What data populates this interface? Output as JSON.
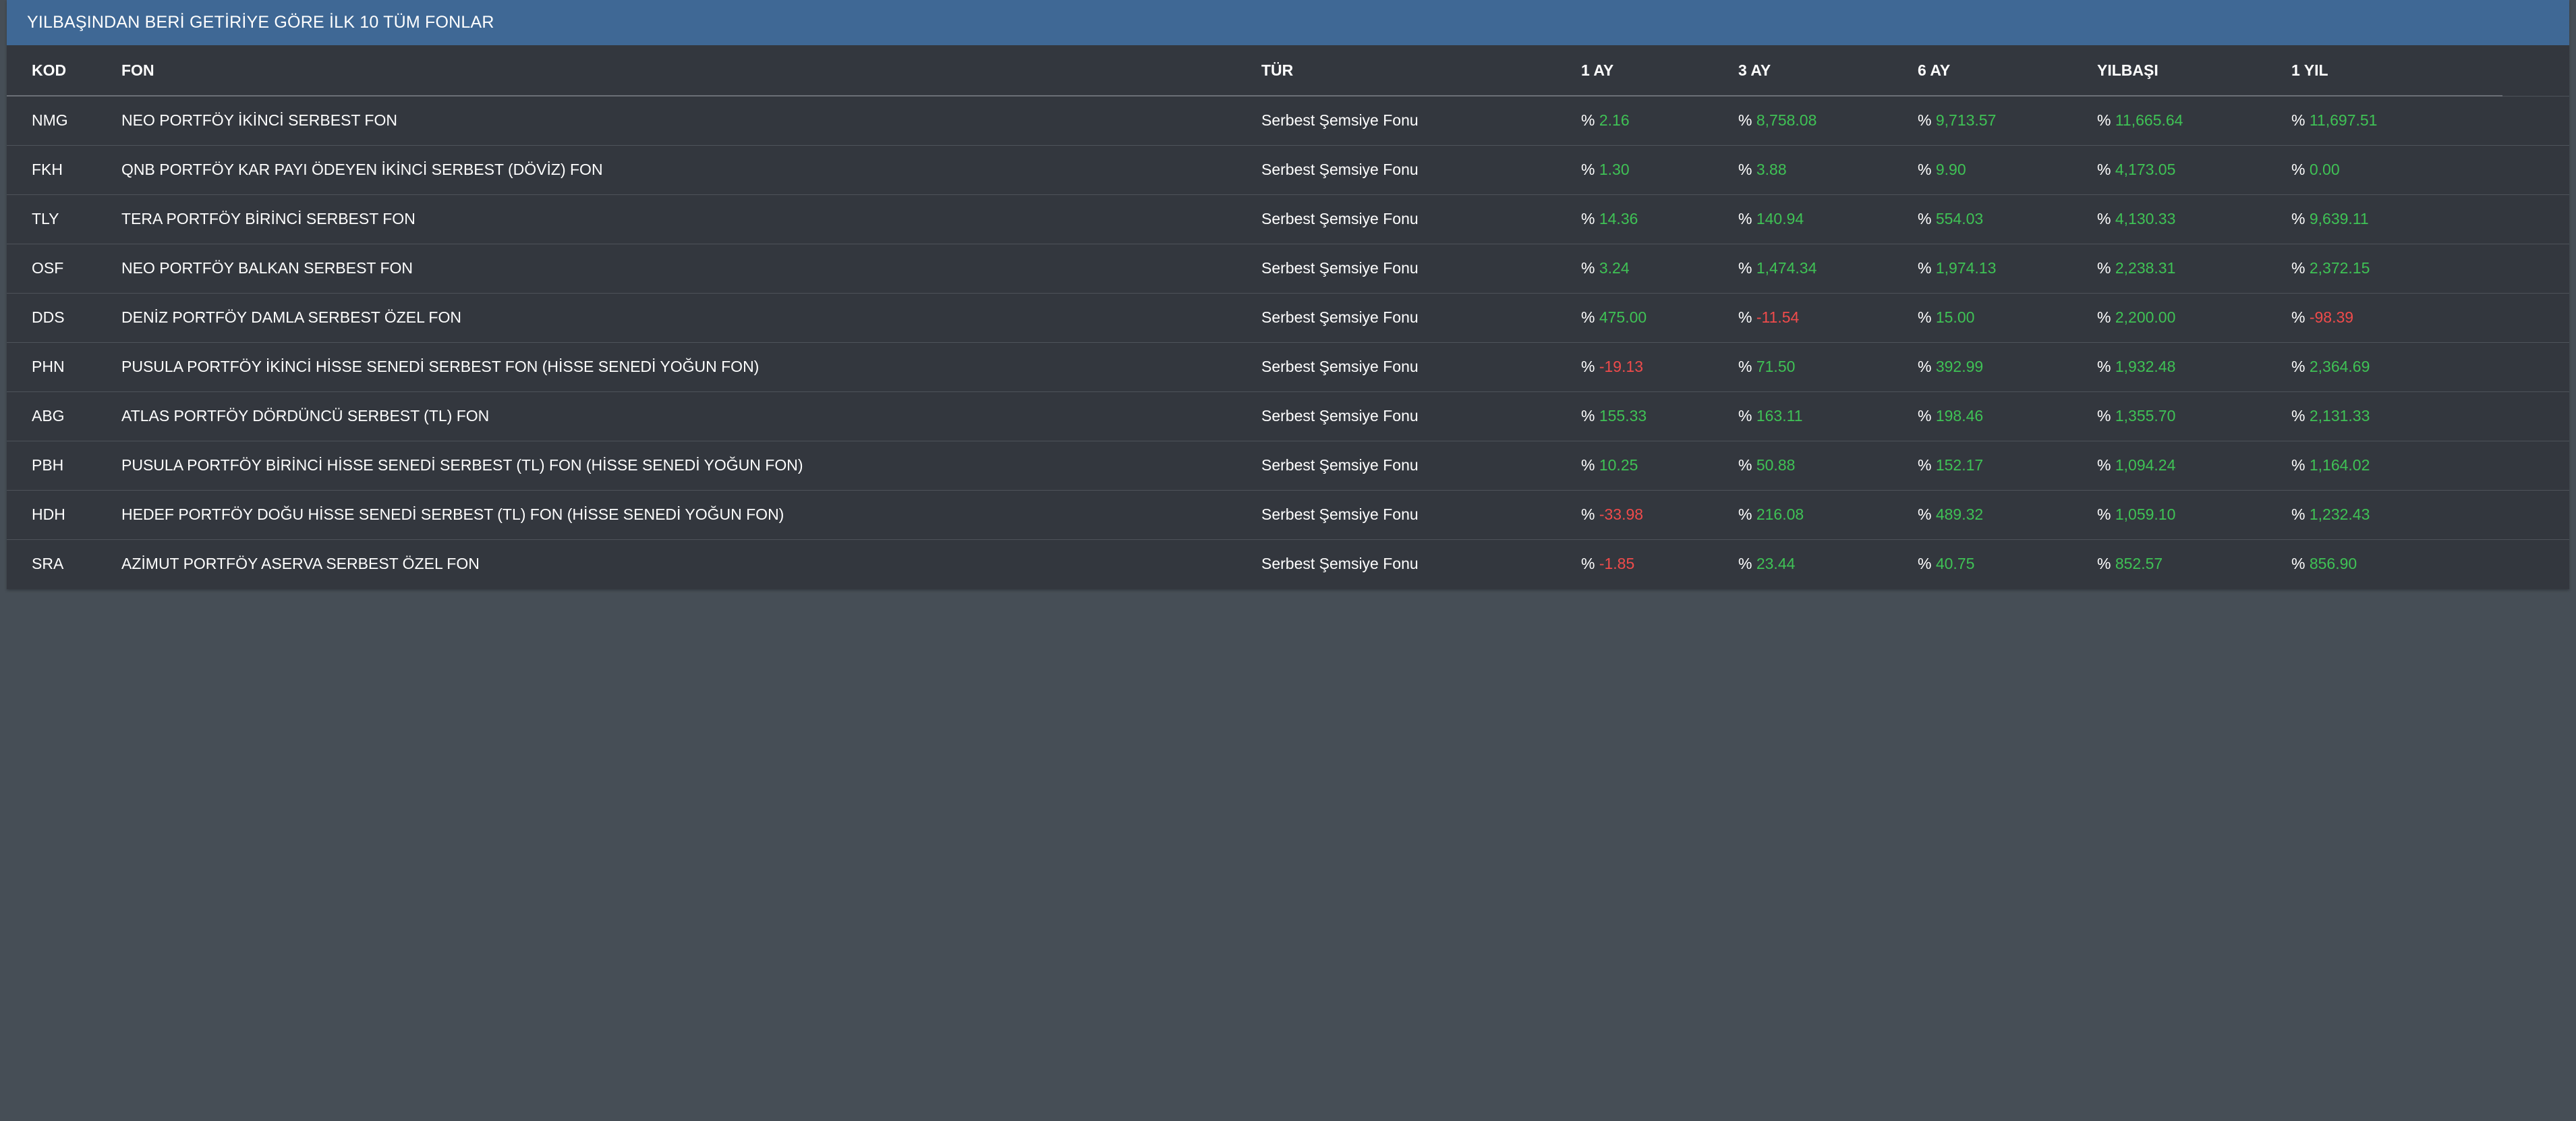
{
  "panel": {
    "title": "YILBAŞINDAN BERİ GETİRİYE GÖRE İLK 10 TÜM FONLAR"
  },
  "colors": {
    "header_bg": "#3f6895",
    "positive": "#3fc255",
    "negative": "#f04b4b",
    "panel_bg": "#33373e",
    "page_bg": "#464e56"
  },
  "columns": [
    "KOD",
    "FON",
    "TÜR",
    "1 AY",
    "3 AY",
    "6 AY",
    "YILBAŞI",
    "1 YIL"
  ],
  "percent_prefix": "%",
  "rows": [
    {
      "kod": "NMG",
      "fon": "NEO PORTFÖY İKİNCİ SERBEST FON",
      "tur": "Serbest Şemsiye Fonu",
      "ay1": "2.16",
      "ay3": "8,758.08",
      "ay6": "9,713.57",
      "ytd": "11,665.64",
      "yil1": "11,697.51"
    },
    {
      "kod": "FKH",
      "fon": "QNB PORTFÖY KAR PAYI ÖDEYEN İKİNCİ SERBEST (DÖVİZ) FON",
      "tur": "Serbest Şemsiye Fonu",
      "ay1": "1.30",
      "ay3": "3.88",
      "ay6": "9.90",
      "ytd": "4,173.05",
      "yil1": "0.00"
    },
    {
      "kod": "TLY",
      "fon": "TERA PORTFÖY BİRİNCİ SERBEST FON",
      "tur": "Serbest Şemsiye Fonu",
      "ay1": "14.36",
      "ay3": "140.94",
      "ay6": "554.03",
      "ytd": "4,130.33",
      "yil1": "9,639.11"
    },
    {
      "kod": "OSF",
      "fon": "NEO PORTFÖY BALKAN SERBEST FON",
      "tur": "Serbest Şemsiye Fonu",
      "ay1": "3.24",
      "ay3": "1,474.34",
      "ay6": "1,974.13",
      "ytd": "2,238.31",
      "yil1": "2,372.15"
    },
    {
      "kod": "DDS",
      "fon": "DENİZ PORTFÖY DAMLA SERBEST ÖZEL FON",
      "tur": "Serbest Şemsiye Fonu",
      "ay1": "475.00",
      "ay3": "-11.54",
      "ay6": "15.00",
      "ytd": "2,200.00",
      "yil1": "-98.39"
    },
    {
      "kod": "PHN",
      "fon": "PUSULA PORTFÖY İKİNCİ HİSSE SENEDİ SERBEST FON (HİSSE SENEDİ YOĞUN FON)",
      "tur": "Serbest Şemsiye Fonu",
      "ay1": "-19.13",
      "ay3": "71.50",
      "ay6": "392.99",
      "ytd": "1,932.48",
      "yil1": "2,364.69"
    },
    {
      "kod": "ABG",
      "fon": "ATLAS PORTFÖY DÖRDÜNCÜ SERBEST (TL) FON",
      "tur": "Serbest Şemsiye Fonu",
      "ay1": "155.33",
      "ay3": "163.11",
      "ay6": "198.46",
      "ytd": "1,355.70",
      "yil1": "2,131.33"
    },
    {
      "kod": "PBH",
      "fon": "PUSULA PORTFÖY BİRİNCİ HİSSE SENEDİ SERBEST (TL) FON (HİSSE SENEDİ YOĞUN FON)",
      "tur": "Serbest Şemsiye Fonu",
      "ay1": "10.25",
      "ay3": "50.88",
      "ay6": "152.17",
      "ytd": "1,094.24",
      "yil1": "1,164.02"
    },
    {
      "kod": "HDH",
      "fon": "HEDEF PORTFÖY DOĞU HİSSE SENEDİ SERBEST (TL) FON (HİSSE SENEDİ YOĞUN FON)",
      "tur": "Serbest Şemsiye Fonu",
      "ay1": "-33.98",
      "ay3": "216.08",
      "ay6": "489.32",
      "ytd": "1,059.10",
      "yil1": "1,232.43"
    },
    {
      "kod": "SRA",
      "fon": "AZİMUT PORTFÖY ASERVA SERBEST ÖZEL FON",
      "tur": "Serbest Şemsiye Fonu",
      "ay1": "-1.85",
      "ay3": "23.44",
      "ay6": "40.75",
      "ytd": "852.57",
      "yil1": "856.90"
    }
  ]
}
